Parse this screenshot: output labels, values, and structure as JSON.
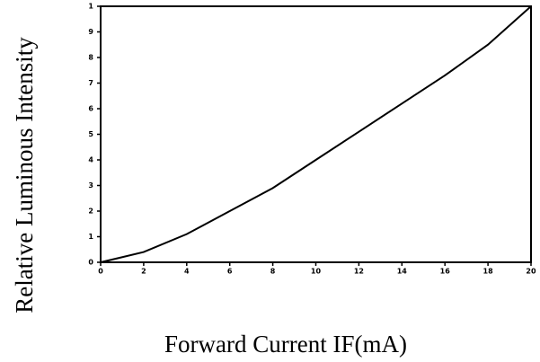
{
  "chart_data": {
    "type": "line",
    "xlabel": "Forward Current IF(mA)",
    "ylabel": "Relative Luminous Intensity",
    "x": [
      0,
      2,
      4,
      6,
      8,
      10,
      12,
      14,
      16,
      18,
      20
    ],
    "values": [
      0,
      0.04,
      0.11,
      0.2,
      0.29,
      0.4,
      0.51,
      0.62,
      0.73,
      0.85,
      1.0
    ],
    "color": "#000000",
    "xlim": [
      0,
      20
    ],
    "xticks": [
      0,
      2,
      4,
      6,
      8,
      10,
      12,
      14,
      16,
      18,
      20
    ],
    "ylim": [
      0,
      1
    ],
    "yticks": [
      0,
      {
        "value": 0.1,
        "label": "1"
      },
      {
        "value": 0.2,
        "label": "2"
      },
      {
        "value": 0.3,
        "label": "3"
      },
      {
        "value": 0.4,
        "label": "4"
      },
      {
        "value": 0.5,
        "label": "5"
      },
      {
        "value": 0.6,
        "label": "6"
      },
      {
        "value": 0.7,
        "label": "7"
      },
      {
        "value": 0.8,
        "label": "8"
      },
      {
        "value": 0.9,
        "label": "9"
      },
      1
    ]
  }
}
